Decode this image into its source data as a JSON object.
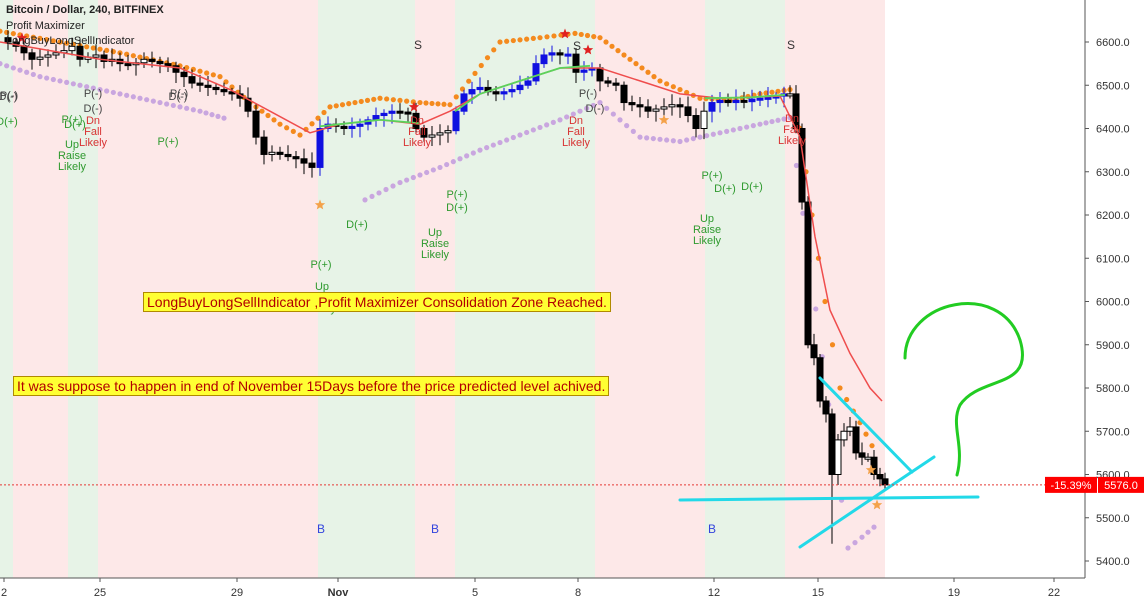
{
  "header": {
    "title": "Bitcoin / Dollar, 240, BITFINEX",
    "indicator_1": "Profit Maximizer",
    "indicator_2": "LongBuyLongSellIndicator"
  },
  "notes": {
    "consolidation": "LongBuyLongSellIndicator ,Profit Maximizer Consolidation Zone Reached.",
    "prediction": "It was suppose to happen in end of November 15Days before the price predicted level achived."
  },
  "price_scale": {
    "labels": [
      "6600.0",
      "6500.0",
      "6400.0",
      "6300.0",
      "6200.0",
      "6100.0",
      "6000.0",
      "5900.0",
      "5800.0",
      "5700.0",
      "5600.0",
      "5500.0",
      "5400.0"
    ],
    "change_badge": "-15.39%",
    "last_price_badge": "5576.0",
    "badge_color": "#ff0000"
  },
  "time_axis": {
    "labels": [
      "2",
      "25",
      "29",
      "Nov",
      "5",
      "8",
      "12",
      "15",
      "19",
      "22"
    ]
  },
  "signals": {
    "buy_marker": "B",
    "sell_marker": "S",
    "up_raise": [
      "Up",
      "Raise",
      "Likely"
    ],
    "dn_fall": [
      "Dn",
      "Fall",
      "Likely"
    ],
    "p_plus": "P(+)",
    "p_minus": "P(-)",
    "d_plus": "D(+)",
    "d_minus": "D(-)"
  },
  "colors": {
    "bull_bg": "#e7f3e7",
    "bear_bg": "#fde8e8",
    "candle_black": "#000000",
    "candle_blue": "#1010e0",
    "ma_red": "#ef4d4d",
    "ma_green": "#5bd35b",
    "stop_orange": "#f48a1e",
    "stop_purple": "#c9a6df",
    "drawing_cyan": "#22d9e8",
    "drawing_green": "#22cc22"
  },
  "chart_data": {
    "type": "candlestick",
    "title": "Bitcoin / Dollar, 240, BITFINEX",
    "ylim": [
      5370,
      6670
    ],
    "last_price": 5576.0,
    "change_percent": -15.39,
    "x_ticks": [
      "2",
      "25",
      "29",
      "Nov",
      "5",
      "8",
      "12",
      "15",
      "19",
      "22"
    ],
    "y_ticks": [
      6600,
      6500,
      6400,
      6300,
      6200,
      6100,
      6000,
      5900,
      5800,
      5700,
      5600,
      5500,
      5400
    ],
    "close_path": [
      [
        0,
        6610
      ],
      [
        8,
        6600
      ],
      [
        16,
        6590
      ],
      [
        24,
        6575
      ],
      [
        32,
        6560
      ],
      [
        40,
        6565
      ],
      [
        48,
        6570
      ],
      [
        56,
        6575
      ],
      [
        64,
        6580
      ],
      [
        72,
        6590
      ],
      [
        80,
        6560
      ],
      [
        88,
        6565
      ],
      [
        96,
        6570
      ],
      [
        104,
        6555
      ],
      [
        112,
        6560
      ],
      [
        120,
        6550
      ],
      [
        128,
        6548
      ],
      [
        136,
        6552
      ],
      [
        144,
        6560
      ],
      [
        152,
        6555
      ],
      [
        160,
        6550
      ],
      [
        168,
        6545
      ],
      [
        176,
        6530
      ],
      [
        184,
        6520
      ],
      [
        192,
        6505
      ],
      [
        200,
        6500
      ],
      [
        208,
        6495
      ],
      [
        216,
        6490
      ],
      [
        224,
        6485
      ],
      [
        232,
        6480
      ],
      [
        240,
        6470
      ],
      [
        248,
        6440
      ],
      [
        256,
        6380
      ],
      [
        264,
        6340
      ],
      [
        272,
        6345
      ],
      [
        280,
        6340
      ],
      [
        288,
        6335
      ],
      [
        296,
        6330
      ],
      [
        304,
        6320
      ],
      [
        312,
        6310
      ],
      [
        320,
        6400
      ],
      [
        328,
        6410
      ],
      [
        336,
        6405
      ],
      [
        344,
        6400
      ],
      [
        352,
        6405
      ],
      [
        360,
        6410
      ],
      [
        368,
        6420
      ],
      [
        376,
        6430
      ],
      [
        384,
        6435
      ],
      [
        392,
        6440
      ],
      [
        400,
        6438
      ],
      [
        408,
        6435
      ],
      [
        416,
        6400
      ],
      [
        424,
        6380
      ],
      [
        432,
        6385
      ],
      [
        440,
        6390
      ],
      [
        448,
        6395
      ],
      [
        456,
        6440
      ],
      [
        464,
        6480
      ],
      [
        472,
        6490
      ],
      [
        480,
        6495
      ],
      [
        488,
        6485
      ],
      [
        496,
        6480
      ],
      [
        504,
        6485
      ],
      [
        512,
        6490
      ],
      [
        520,
        6500
      ],
      [
        528,
        6510
      ],
      [
        536,
        6550
      ],
      [
        544,
        6570
      ],
      [
        552,
        6575
      ],
      [
        560,
        6570
      ],
      [
        568,
        6572
      ],
      [
        576,
        6530
      ],
      [
        584,
        6535
      ],
      [
        592,
        6540
      ],
      [
        600,
        6510
      ],
      [
        608,
        6505
      ],
      [
        616,
        6500
      ],
      [
        624,
        6460
      ],
      [
        632,
        6455
      ],
      [
        640,
        6450
      ],
      [
        648,
        6440
      ],
      [
        656,
        6445
      ],
      [
        664,
        6450
      ],
      [
        672,
        6455
      ],
      [
        680,
        6450
      ],
      [
        688,
        6430
      ],
      [
        696,
        6400
      ],
      [
        704,
        6440
      ],
      [
        712,
        6460
      ],
      [
        720,
        6465
      ],
      [
        728,
        6460
      ],
      [
        736,
        6465
      ],
      [
        744,
        6462
      ],
      [
        752,
        6468
      ],
      [
        760,
        6470
      ],
      [
        768,
        6472
      ],
      [
        776,
        6475
      ],
      [
        784,
        6480
      ],
      [
        790,
        6480
      ],
      [
        796,
        6400
      ],
      [
        802,
        6230
      ],
      [
        808,
        5900
      ],
      [
        814,
        5870
      ],
      [
        820,
        5770
      ],
      [
        826,
        5740
      ],
      [
        832,
        5600
      ],
      [
        838,
        5680
      ],
      [
        844,
        5700
      ],
      [
        850,
        5710
      ],
      [
        856,
        5650
      ],
      [
        862,
        5640
      ],
      [
        868,
        5640
      ],
      [
        874,
        5600
      ],
      [
        880,
        5590
      ],
      [
        885,
        5576
      ]
    ]
  }
}
